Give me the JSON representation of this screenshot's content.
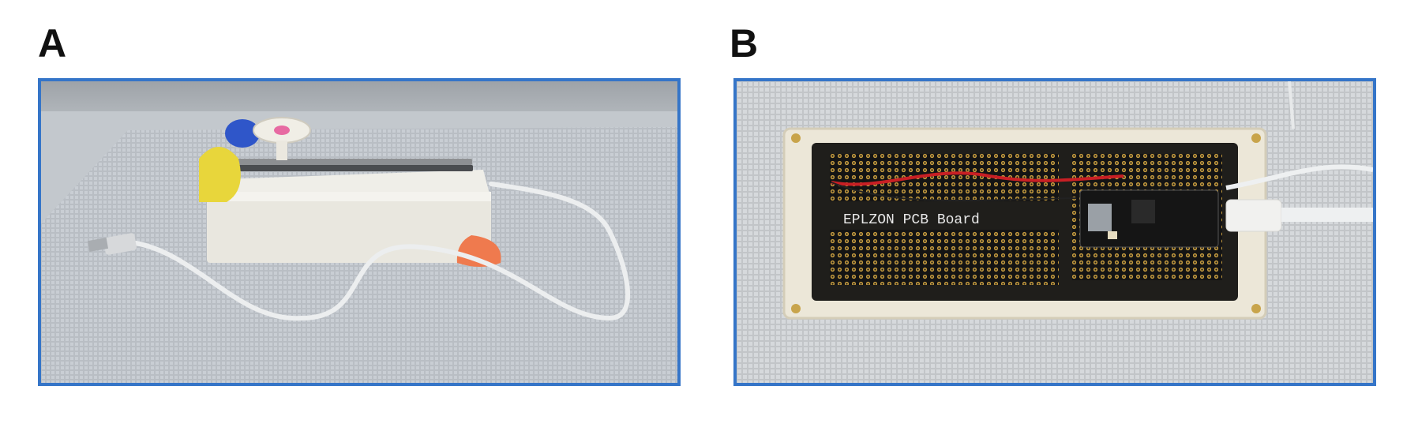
{
  "panels": [
    {
      "label": "A",
      "image": {
        "subject": "white-box-device-with-usb-cable",
        "frame_color": "#3575c8"
      }
    },
    {
      "label": "B",
      "image": {
        "subject": "circuit-board-inside-enclosure",
        "frame_color": "#3575c8",
        "board_text": "EPLZON PCB Board"
      }
    }
  ]
}
